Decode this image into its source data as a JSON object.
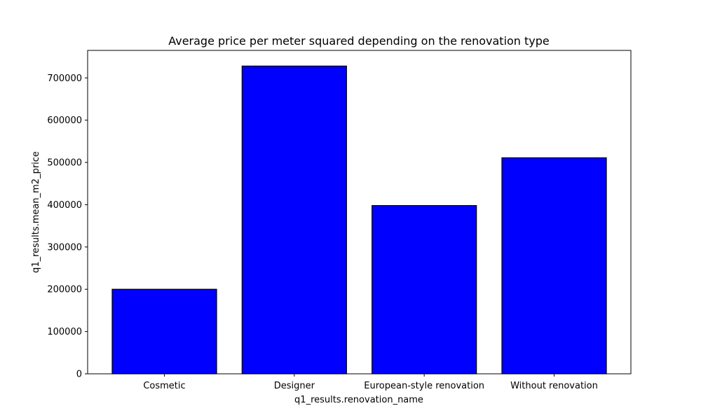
{
  "chart_data": {
    "type": "bar",
    "title": "Average price per meter squared depending on the renovation type",
    "xlabel": "q1_results.renovation_name",
    "ylabel": "q1_results.mean_m2_price",
    "categories": [
      "Cosmetic",
      "Designer",
      "European-style renovation",
      "Without renovation"
    ],
    "values": [
      200000,
      728000,
      398000,
      511000
    ],
    "ylim": [
      0,
      765000
    ],
    "yticks": [
      0,
      100000,
      200000,
      300000,
      400000,
      500000,
      600000,
      700000
    ],
    "ytick_labels": [
      "0",
      "100000",
      "200000",
      "300000",
      "400000",
      "500000",
      "600000",
      "700000"
    ],
    "bar_color": "#0000ff",
    "bar_edge_color": "#000000",
    "grid": false
  }
}
